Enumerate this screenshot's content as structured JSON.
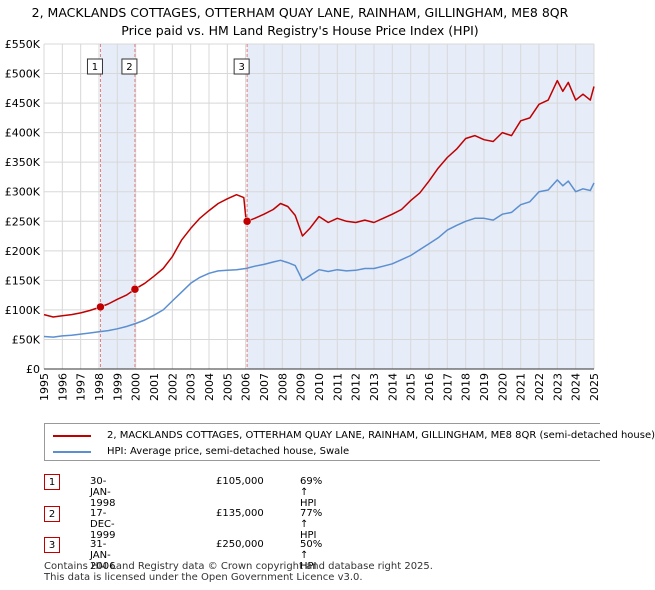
{
  "title_line1": "2, MACKLANDS COTTAGES, OTTERHAM QUAY LANE, RAINHAM, GILLINGHAM, ME8 8QR",
  "title_line2": "Price paid vs. HM Land Registry's House Price Index (HPI)",
  "colors": {
    "property": "#c00000",
    "hpi": "#5b8fd0",
    "shade": "#e6ecf8",
    "grid": "#d8d8d8",
    "marker_line": "#e08080"
  },
  "legend": {
    "property": "2, MACKLANDS COTTAGES, OTTERHAM QUAY LANE, RAINHAM, GILLINGHAM, ME8 8QR (semi-detached house)",
    "hpi": "HPI: Average price, semi-detached house, Swale"
  },
  "sales": [
    {
      "num": "1",
      "date": "30-JAN-1998",
      "price": "£105,000",
      "hpi": "69% ↑ HPI"
    },
    {
      "num": "2",
      "date": "17-DEC-1999",
      "price": "£135,000",
      "hpi": "77% ↑ HPI"
    },
    {
      "num": "3",
      "date": "31-JAN-2006",
      "price": "£250,000",
      "hpi": "50% ↑ HPI"
    }
  ],
  "footer_line1": "Contains HM Land Registry data © Crown copyright and database right 2025.",
  "footer_line2": "This data is licensed under the Open Government Licence v3.0.",
  "chart_data": {
    "type": "line",
    "xlim": [
      1995,
      2025
    ],
    "ylim": [
      0,
      550000
    ],
    "y_ticks": [
      0,
      50000,
      100000,
      150000,
      200000,
      250000,
      300000,
      350000,
      400000,
      450000,
      500000,
      550000
    ],
    "y_tick_labels": [
      "£0",
      "£50K",
      "£100K",
      "£150K",
      "£200K",
      "£250K",
      "£300K",
      "£350K",
      "£400K",
      "£450K",
      "£500K",
      "£550K"
    ],
    "x_ticks": [
      1995,
      1996,
      1997,
      1998,
      1999,
      2000,
      2001,
      2002,
      2003,
      2004,
      2005,
      2006,
      2007,
      2008,
      2009,
      2010,
      2011,
      2012,
      2013,
      2014,
      2015,
      2016,
      2017,
      2018,
      2019,
      2020,
      2021,
      2022,
      2023,
      2024,
      2025
    ],
    "x_tick_labels": [
      "1995",
      "1996",
      "1997",
      "1998",
      "1999",
      "2000",
      "2001",
      "2002",
      "2003",
      "2004",
      "2005",
      "2006",
      "2007",
      "2008",
      "2009",
      "2010",
      "2011",
      "2012",
      "2013",
      "2014",
      "2015",
      "2016",
      "2017",
      "2018",
      "2019",
      "2020",
      "2021",
      "2022",
      "2023",
      "2024",
      "2025"
    ],
    "grid": true,
    "sale_markers": [
      {
        "label": "1",
        "x": 1998.08,
        "y": 105000
      },
      {
        "label": "2",
        "x": 1999.96,
        "y": 135000
      },
      {
        "label": "3",
        "x": 2006.08,
        "y": 250000
      }
    ],
    "shaded_ranges": [
      [
        1998.08,
        1999.96
      ],
      [
        2006.08,
        2025
      ]
    ],
    "series": [
      {
        "name": "2, MACKLANDS COTTAGES, OTTERHAM QUAY LANE, RAINHAM, GILLINGHAM, ME8 8QR (semi-detached house)",
        "color": "#c00000",
        "x": [
          1995,
          1995.5,
          1996,
          1996.5,
          1997,
          1997.5,
          1998.08,
          1998.5,
          1999,
          1999.5,
          1999.96,
          2000.5,
          2001,
          2001.5,
          2002,
          2002.5,
          2003,
          2003.5,
          2004,
          2004.5,
          2005,
          2005.5,
          2005.9,
          2006,
          2006.08,
          2006.5,
          2007,
          2007.5,
          2007.9,
          2008.3,
          2008.7,
          2009.1,
          2009.5,
          2010,
          2010.5,
          2011,
          2011.5,
          2012,
          2012.5,
          2013,
          2013.5,
          2014,
          2014.5,
          2015,
          2015.5,
          2016,
          2016.5,
          2017,
          2017.5,
          2018,
          2018.5,
          2019,
          2019.5,
          2020,
          2020.5,
          2021,
          2021.5,
          2022,
          2022.5,
          2023,
          2023.3,
          2023.6,
          2024,
          2024.4,
          2024.8,
          2025
        ],
        "y": [
          92000,
          88000,
          90000,
          92000,
          95000,
          99000,
          105000,
          110000,
          118000,
          125000,
          135000,
          145000,
          157000,
          170000,
          190000,
          218000,
          238000,
          255000,
          268000,
          280000,
          288000,
          295000,
          290000,
          258000,
          250000,
          255000,
          262000,
          270000,
          280000,
          275000,
          260000,
          225000,
          238000,
          258000,
          248000,
          255000,
          250000,
          248000,
          252000,
          248000,
          255000,
          262000,
          270000,
          285000,
          298000,
          318000,
          340000,
          358000,
          372000,
          390000,
          395000,
          388000,
          385000,
          400000,
          395000,
          420000,
          425000,
          448000,
          455000,
          488000,
          470000,
          485000,
          455000,
          465000,
          455000,
          478000
        ]
      },
      {
        "name": "HPI: Average price, semi-detached house, Swale",
        "color": "#5b8fd0",
        "x": [
          1995,
          1995.5,
          1996,
          1996.5,
          1997,
          1997.5,
          1998,
          1998.5,
          1999,
          1999.5,
          2000,
          2000.5,
          2001,
          2001.5,
          2002,
          2002.5,
          2003,
          2003.5,
          2004,
          2004.5,
          2005,
          2005.5,
          2006,
          2006.5,
          2007,
          2007.5,
          2007.9,
          2008.3,
          2008.7,
          2009.1,
          2009.5,
          2010,
          2010.5,
          2011,
          2011.5,
          2012,
          2012.5,
          2013,
          2013.5,
          2014,
          2014.5,
          2015,
          2015.5,
          2016,
          2016.5,
          2017,
          2017.5,
          2018,
          2018.5,
          2019,
          2019.5,
          2020,
          2020.5,
          2021,
          2021.5,
          2022,
          2022.5,
          2023,
          2023.3,
          2023.6,
          2024,
          2024.4,
          2024.8,
          2025
        ],
        "y": [
          55000,
          54000,
          56000,
          57000,
          59000,
          61000,
          63000,
          65000,
          68000,
          72000,
          77000,
          83000,
          91000,
          100000,
          115000,
          130000,
          145000,
          155000,
          162000,
          166000,
          167000,
          168000,
          170000,
          174000,
          177000,
          181000,
          184000,
          180000,
          175000,
          150000,
          158000,
          168000,
          165000,
          168000,
          166000,
          167000,
          170000,
          170000,
          174000,
          178000,
          185000,
          192000,
          202000,
          212000,
          222000,
          235000,
          243000,
          250000,
          255000,
          255000,
          252000,
          262000,
          265000,
          278000,
          283000,
          300000,
          303000,
          320000,
          310000,
          318000,
          300000,
          305000,
          302000,
          315000
        ]
      }
    ]
  }
}
